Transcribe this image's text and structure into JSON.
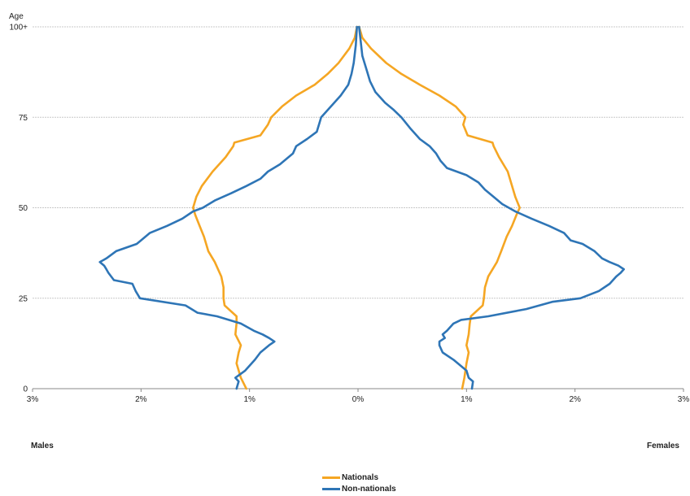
{
  "chart_data": {
    "type": "line",
    "title": "",
    "ylabel": "Age",
    "xlabel": "",
    "side_labels": {
      "left": "Males",
      "right": "Females"
    },
    "xlim": [
      -3,
      3
    ],
    "ylim": [
      0,
      100
    ],
    "x_ticks": [
      {
        "value": -3,
        "label": "3%"
      },
      {
        "value": -2,
        "label": "2%"
      },
      {
        "value": -1,
        "label": "1%"
      },
      {
        "value": 0,
        "label": "0%"
      },
      {
        "value": 1,
        "label": "1%"
      },
      {
        "value": 2,
        "label": "2%"
      },
      {
        "value": 3,
        "label": "3%"
      }
    ],
    "y_ticks": [
      {
        "value": 0,
        "label": "0"
      },
      {
        "value": 25,
        "label": "25"
      },
      {
        "value": 50,
        "label": "50"
      },
      {
        "value": 75,
        "label": "75"
      },
      {
        "value": 100,
        "label": "100+"
      }
    ],
    "grid": "horizontal",
    "legend_position": "bottom",
    "series": [
      {
        "name": "Nationals",
        "color": "#f5a623",
        "males": [
          [
            0,
            -1.03
          ],
          [
            3,
            -1.08
          ],
          [
            7,
            -1.12
          ],
          [
            10,
            -1.1
          ],
          [
            12,
            -1.08
          ],
          [
            15,
            -1.13
          ],
          [
            18,
            -1.12
          ],
          [
            20,
            -1.12
          ],
          [
            23,
            -1.23
          ],
          [
            25,
            -1.24
          ],
          [
            28,
            -1.24
          ],
          [
            31,
            -1.26
          ],
          [
            35,
            -1.32
          ],
          [
            38,
            -1.38
          ],
          [
            42,
            -1.42
          ],
          [
            45,
            -1.46
          ],
          [
            48,
            -1.5
          ],
          [
            50,
            -1.52
          ],
          [
            53,
            -1.49
          ],
          [
            56,
            -1.44
          ],
          [
            60,
            -1.34
          ],
          [
            64,
            -1.22
          ],
          [
            67,
            -1.15
          ],
          [
            68,
            -1.14
          ],
          [
            70,
            -0.9
          ],
          [
            73,
            -0.83
          ],
          [
            75,
            -0.8
          ],
          [
            78,
            -0.7
          ],
          [
            81,
            -0.57
          ],
          [
            84,
            -0.4
          ],
          [
            87,
            -0.28
          ],
          [
            90,
            -0.18
          ],
          [
            94,
            -0.08
          ],
          [
            97,
            -0.03
          ],
          [
            100,
            -0.01
          ]
        ],
        "females": [
          [
            0,
            0.96
          ],
          [
            3,
            0.98
          ],
          [
            7,
            1.0
          ],
          [
            10,
            1.02
          ],
          [
            12,
            1.0
          ],
          [
            15,
            1.02
          ],
          [
            18,
            1.03
          ],
          [
            20,
            1.04
          ],
          [
            23,
            1.15
          ],
          [
            25,
            1.16
          ],
          [
            28,
            1.17
          ],
          [
            31,
            1.2
          ],
          [
            35,
            1.28
          ],
          [
            38,
            1.32
          ],
          [
            42,
            1.37
          ],
          [
            45,
            1.42
          ],
          [
            48,
            1.46
          ],
          [
            50,
            1.49
          ],
          [
            53,
            1.45
          ],
          [
            56,
            1.42
          ],
          [
            60,
            1.38
          ],
          [
            64,
            1.3
          ],
          [
            67,
            1.25
          ],
          [
            68,
            1.24
          ],
          [
            70,
            1.01
          ],
          [
            73,
            0.97
          ],
          [
            75,
            0.99
          ],
          [
            78,
            0.9
          ],
          [
            81,
            0.75
          ],
          [
            84,
            0.57
          ],
          [
            87,
            0.4
          ],
          [
            90,
            0.26
          ],
          [
            94,
            0.12
          ],
          [
            97,
            0.04
          ],
          [
            100,
            0.01
          ]
        ]
      },
      {
        "name": "Non-nationals",
        "color": "#2e75b6",
        "males": [
          [
            0,
            -1.12
          ],
          [
            2,
            -1.1
          ],
          [
            3,
            -1.13
          ],
          [
            5,
            -1.04
          ],
          [
            8,
            -0.95
          ],
          [
            10,
            -0.9
          ],
          [
            12,
            -0.82
          ],
          [
            13,
            -0.77
          ],
          [
            14,
            -0.82
          ],
          [
            15,
            -0.88
          ],
          [
            16,
            -0.96
          ],
          [
            18,
            -1.08
          ],
          [
            20,
            -1.3
          ],
          [
            21,
            -1.48
          ],
          [
            23,
            -1.59
          ],
          [
            25,
            -2.01
          ],
          [
            27,
            -2.05
          ],
          [
            29,
            -2.08
          ],
          [
            30,
            -2.25
          ],
          [
            32,
            -2.3
          ],
          [
            33,
            -2.32
          ],
          [
            34,
            -2.34
          ],
          [
            35,
            -2.38
          ],
          [
            36,
            -2.32
          ],
          [
            38,
            -2.23
          ],
          [
            40,
            -2.04
          ],
          [
            41,
            -2.0
          ],
          [
            43,
            -1.92
          ],
          [
            45,
            -1.76
          ],
          [
            47,
            -1.62
          ],
          [
            49,
            -1.52
          ],
          [
            50,
            -1.43
          ],
          [
            52,
            -1.32
          ],
          [
            54,
            -1.17
          ],
          [
            56,
            -1.03
          ],
          [
            58,
            -0.9
          ],
          [
            60,
            -0.83
          ],
          [
            62,
            -0.72
          ],
          [
            65,
            -0.6
          ],
          [
            67,
            -0.57
          ],
          [
            69,
            -0.47
          ],
          [
            71,
            -0.38
          ],
          [
            73,
            -0.36
          ],
          [
            75,
            -0.34
          ],
          [
            78,
            -0.25
          ],
          [
            81,
            -0.16
          ],
          [
            84,
            -0.09
          ],
          [
            87,
            -0.06
          ],
          [
            90,
            -0.04
          ],
          [
            95,
            -0.02
          ],
          [
            100,
            -0.01
          ]
        ],
        "females": [
          [
            0,
            1.05
          ],
          [
            2,
            1.06
          ],
          [
            3,
            1.02
          ],
          [
            5,
            1.0
          ],
          [
            8,
            0.88
          ],
          [
            10,
            0.78
          ],
          [
            12,
            0.75
          ],
          [
            13,
            0.75
          ],
          [
            14,
            0.8
          ],
          [
            15,
            0.78
          ],
          [
            16,
            0.82
          ],
          [
            18,
            0.88
          ],
          [
            19,
            0.95
          ],
          [
            20,
            1.2
          ],
          [
            22,
            1.55
          ],
          [
            24,
            1.79
          ],
          [
            25,
            2.05
          ],
          [
            27,
            2.22
          ],
          [
            29,
            2.32
          ],
          [
            31,
            2.38
          ],
          [
            32,
            2.42
          ],
          [
            33,
            2.45
          ],
          [
            34,
            2.4
          ],
          [
            35,
            2.32
          ],
          [
            36,
            2.25
          ],
          [
            38,
            2.18
          ],
          [
            40,
            2.07
          ],
          [
            41,
            1.96
          ],
          [
            43,
            1.9
          ],
          [
            45,
            1.76
          ],
          [
            47,
            1.6
          ],
          [
            49,
            1.45
          ],
          [
            51,
            1.33
          ],
          [
            53,
            1.25
          ],
          [
            55,
            1.17
          ],
          [
            57,
            1.11
          ],
          [
            59,
            1.0
          ],
          [
            61,
            0.82
          ],
          [
            63,
            0.76
          ],
          [
            65,
            0.72
          ],
          [
            67,
            0.66
          ],
          [
            69,
            0.57
          ],
          [
            72,
            0.48
          ],
          [
            75,
            0.4
          ],
          [
            77,
            0.33
          ],
          [
            79,
            0.25
          ],
          [
            82,
            0.16
          ],
          [
            85,
            0.11
          ],
          [
            88,
            0.08
          ],
          [
            92,
            0.04
          ],
          [
            100,
            0.01
          ]
        ]
      }
    ]
  }
}
